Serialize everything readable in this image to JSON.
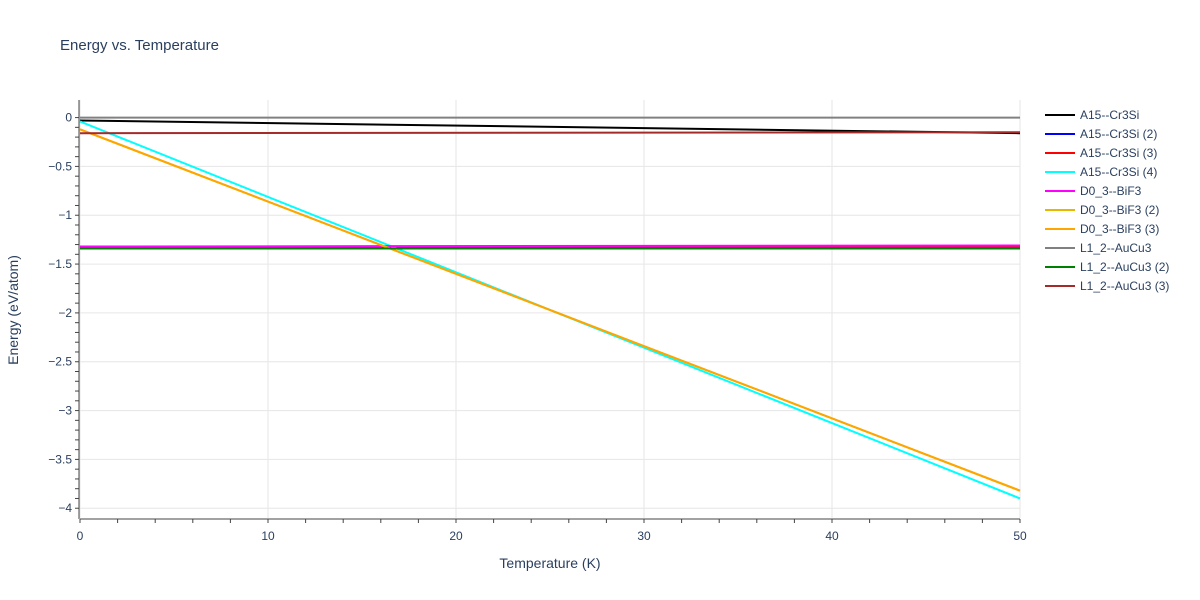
{
  "chart_data": {
    "type": "line",
    "title": "Energy vs. Temperature",
    "xlabel": "Temperature (K)",
    "ylabel": "Energy (eV/atom)",
    "xlim": [
      0,
      50
    ],
    "ylim": [
      -4.1,
      0.18
    ],
    "x_ticks": [
      0,
      10,
      20,
      30,
      40,
      50
    ],
    "y_ticks": [
      0,
      -0.5,
      -1,
      -1.5,
      -2,
      -2.5,
      -3,
      -3.5,
      -4
    ],
    "x_tick_labels": [
      "0",
      "10",
      "20",
      "30",
      "40",
      "50"
    ],
    "y_tick_labels": [
      "0",
      "−0.5",
      "−1",
      "−1.5",
      "−2",
      "−2.5",
      "−3",
      "−3.5",
      "−4"
    ],
    "grid": true,
    "legend_position": "right",
    "series": [
      {
        "name": "A15--Cr3Si",
        "color": "#000000",
        "x": [
          0,
          50
        ],
        "y": [
          -0.03,
          -0.16
        ]
      },
      {
        "name": "A15--Cr3Si (2)",
        "color": "#0000ff",
        "x": [
          0,
          50
        ],
        "y": [
          -1.33,
          -1.32
        ]
      },
      {
        "name": "A15--Cr3Si (3)",
        "color": "#ff0000",
        "x": [
          0,
          50
        ],
        "y": [
          -1.33,
          -1.32
        ]
      },
      {
        "name": "A15--Cr3Si (4)",
        "color": "#00ffff",
        "x": [
          0,
          50
        ],
        "y": [
          -0.04,
          -3.9
        ]
      },
      {
        "name": "D0_3--BiF3",
        "color": "#ff00ff",
        "x": [
          0,
          50
        ],
        "y": [
          -1.32,
          -1.31
        ]
      },
      {
        "name": "D0_3--BiF3 (2)",
        "color": "#e6b800",
        "x": [
          0,
          50
        ],
        "y": [
          -0.12,
          -3.82
        ]
      },
      {
        "name": "D0_3--BiF3 (3)",
        "color": "#ffa500",
        "x": [
          0,
          50
        ],
        "y": [
          -0.12,
          -3.82
        ]
      },
      {
        "name": "L1_2--AuCu3",
        "color": "#808080",
        "x": [
          0,
          50
        ],
        "y": [
          0.0,
          0.0
        ]
      },
      {
        "name": "L1_2--AuCu3 (2)",
        "color": "#008000",
        "x": [
          0,
          50
        ],
        "y": [
          -1.34,
          -1.34
        ]
      },
      {
        "name": "L1_2--AuCu3 (3)",
        "color": "#a52a2a",
        "x": [
          0,
          50
        ],
        "y": [
          -0.16,
          -0.15
        ]
      }
    ]
  }
}
